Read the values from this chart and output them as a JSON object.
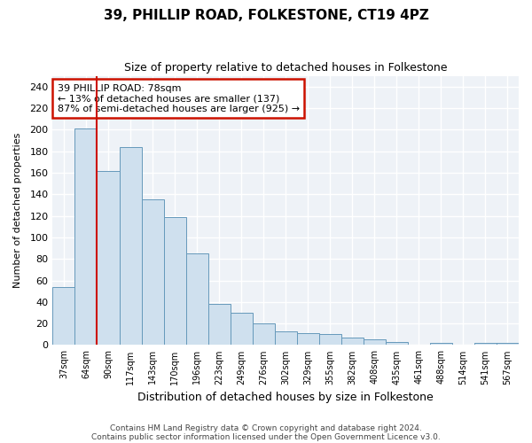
{
  "title": "39, PHILLIP ROAD, FOLKESTONE, CT19 4PZ",
  "subtitle": "Size of property relative to detached houses in Folkestone",
  "xlabel": "Distribution of detached houses by size in Folkestone",
  "ylabel": "Number of detached properties",
  "bar_color": "#cfe0ee",
  "bar_edge_color": "#6699bb",
  "bg_color": "#eef2f7",
  "grid_color": "#ffffff",
  "fig_bg_color": "#ffffff",
  "categories": [
    "37sqm",
    "64sqm",
    "90sqm",
    "117sqm",
    "143sqm",
    "170sqm",
    "196sqm",
    "223sqm",
    "249sqm",
    "276sqm",
    "302sqm",
    "329sqm",
    "355sqm",
    "382sqm",
    "408sqm",
    "435sqm",
    "461sqm",
    "488sqm",
    "514sqm",
    "541sqm",
    "567sqm"
  ],
  "values": [
    54,
    201,
    162,
    184,
    135,
    119,
    85,
    38,
    30,
    20,
    13,
    11,
    10,
    7,
    5,
    3,
    0,
    2,
    0,
    2,
    2
  ],
  "ylim": [
    0,
    250
  ],
  "yticks": [
    0,
    20,
    40,
    60,
    80,
    100,
    120,
    140,
    160,
    180,
    200,
    220,
    240
  ],
  "vline_x": 2,
  "vline_color": "#cc1100",
  "annotation_text": "39 PHILLIP ROAD: 78sqm\n← 13% of detached houses are smaller (137)\n87% of semi-detached houses are larger (925) →",
  "annotation_box_color": "#cc1100",
  "footnote1": "Contains HM Land Registry data © Crown copyright and database right 2024.",
  "footnote2": "Contains public sector information licensed under the Open Government Licence v3.0."
}
